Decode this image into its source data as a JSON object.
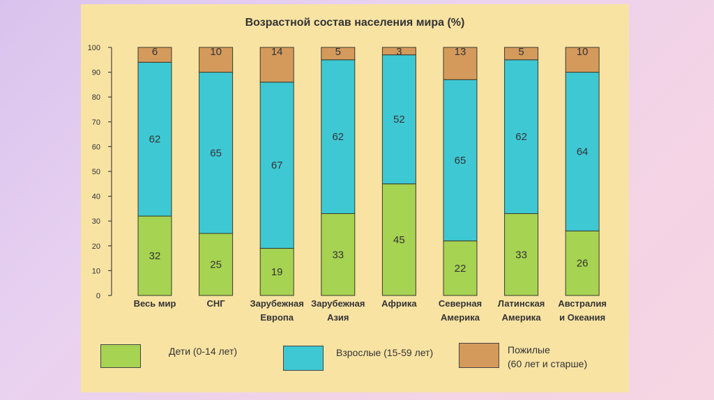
{
  "chart_data": {
    "type": "stacked_bar",
    "title": "Возрастной состав населения мира (%)",
    "ylim": [
      0,
      100
    ],
    "yticks": [
      0,
      10,
      20,
      30,
      40,
      50,
      60,
      70,
      80,
      90,
      100
    ],
    "categories": [
      [
        "Весь мир"
      ],
      [
        "СНГ"
      ],
      [
        "Зарубежная",
        "Европа"
      ],
      [
        "Зарубежная",
        "Азия"
      ],
      [
        "Африка"
      ],
      [
        "Северная",
        "Америка"
      ],
      [
        "Латинская",
        "Америка"
      ],
      [
        "Австралия",
        "и Океания"
      ]
    ],
    "series": [
      {
        "name": "Дети (0-14 лет)",
        "color": "#a6d351",
        "values": [
          32,
          25,
          19,
          33,
          45,
          22,
          33,
          26
        ]
      },
      {
        "name": "Взрослые (15-59 лет)",
        "color": "#3ec8d4",
        "values": [
          62,
          65,
          67,
          62,
          52,
          65,
          62,
          64
        ]
      },
      {
        "name": "Пожилые (60 лет и старше)",
        "color": "#d49a5c",
        "values": [
          6,
          10,
          14,
          5,
          3,
          13,
          5,
          10
        ]
      }
    ]
  },
  "legend": [
    {
      "label": "Дети (0-14 лет)",
      "color": "#a6d351"
    },
    {
      "label": "Взрослые (15-59 лет)",
      "color": "#3ec8d4"
    },
    {
      "label": "Пожилые\n(60 лет и старше)",
      "color": "#d49a5c"
    }
  ]
}
